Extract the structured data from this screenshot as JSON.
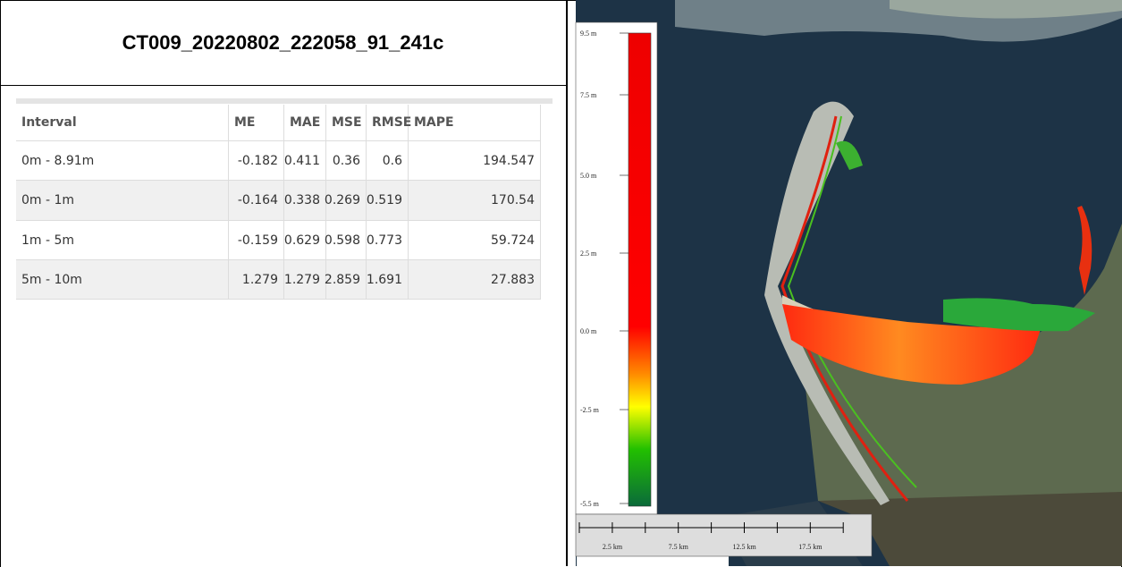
{
  "header": {
    "title": "CT009_20220802_222058_91_241c"
  },
  "table": {
    "columns": [
      "Interval",
      "ME",
      "MAE",
      "MSE",
      "RMSE",
      "MAPE"
    ],
    "rows": [
      [
        "0m - 8.91m",
        -0.182,
        0.411,
        0.36,
        0.6,
        194.547
      ],
      [
        "0m - 1m",
        -0.164,
        0.338,
        0.269,
        0.519,
        170.54
      ],
      [
        "1m - 5m",
        -0.159,
        0.629,
        0.598,
        0.773,
        59.724
      ],
      [
        "5m - 10m",
        1.279,
        1.279,
        2.859,
        1.691,
        27.883
      ]
    ]
  },
  "map": {
    "legend": [
      "9.5 m",
      "7.5 m",
      "5.0 m",
      "2.5 m",
      "0.0 m",
      "-2.5 m",
      "-5.5 m"
    ],
    "scale": [
      "2.5 km",
      "7.5 km",
      "12.5 km",
      "17.5 km"
    ]
  }
}
